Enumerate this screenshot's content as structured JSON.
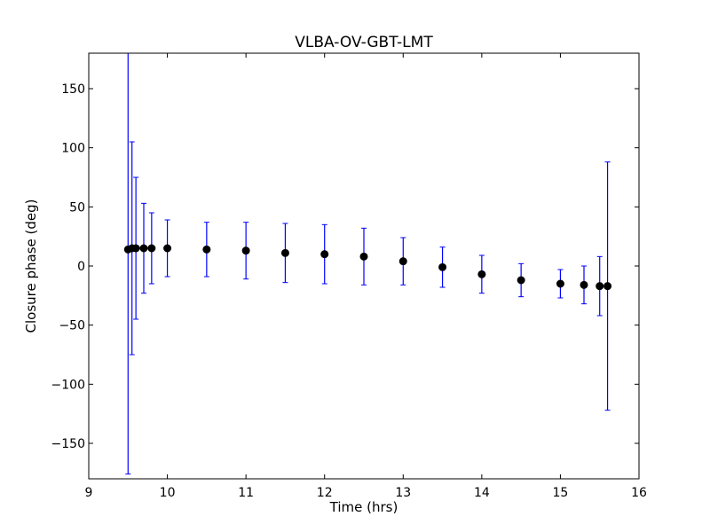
{
  "chart_data": {
    "type": "scatter",
    "title": "VLBA-OV-GBT-LMT",
    "xlabel": "Time (hrs)",
    "ylabel": "Closure phase (deg)",
    "xlim": [
      9,
      16
    ],
    "ylim": [
      -180,
      180
    ],
    "xticks": [
      9,
      10,
      11,
      12,
      13,
      14,
      15,
      16
    ],
    "xtick_labels": [
      "9",
      "10",
      "11",
      "12",
      "13",
      "14",
      "15",
      "16"
    ],
    "yticks": [
      150,
      100,
      50,
      0,
      -50,
      -100,
      -150
    ],
    "ytick_labels": [
      "150",
      "100",
      "50",
      "0",
      "−50",
      "−100",
      "−150"
    ],
    "grid": false,
    "colors": {
      "errorbar": "#0000ff",
      "marker": "#000000"
    },
    "series": [
      {
        "x": [
          9.5,
          9.55,
          9.6,
          9.7,
          9.8,
          10.0,
          10.5,
          11.0,
          11.5,
          12.0,
          12.5,
          13.0,
          13.5,
          14.0,
          14.5,
          15.0,
          15.3,
          15.5,
          15.6
        ],
        "y": [
          14,
          15,
          15,
          15,
          15,
          15,
          14,
          13,
          11,
          10,
          8,
          4,
          -1,
          -7,
          -12,
          -15,
          -16,
          -17,
          -17
        ],
        "yerr": [
          190,
          90,
          60,
          38,
          30,
          24,
          23,
          24,
          25,
          25,
          24,
          20,
          17,
          16,
          14,
          12,
          16,
          25,
          105
        ]
      }
    ]
  }
}
